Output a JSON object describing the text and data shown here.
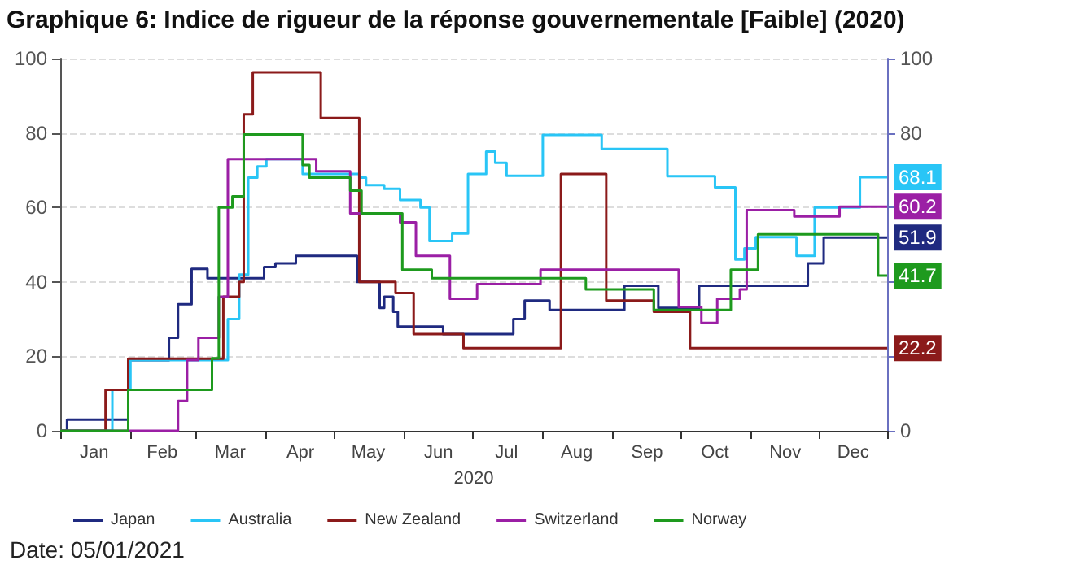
{
  "chart_data": {
    "type": "step",
    "title": "Graphique 6: Indice de rigueur de la réponse gouvernementale [Faible] (2020)",
    "xlabel": "2020",
    "annotations": [
      "Date: 05/01/2021"
    ],
    "xlim": [
      "2020-01-01",
      "2020-12-31"
    ],
    "xticks": [
      {
        "value": "2020-01-01",
        "label": null
      },
      {
        "value": "2020-01-16",
        "label": "Jan"
      },
      {
        "value": "2020-02-01",
        "label": null
      },
      {
        "value": "2020-02-15",
        "label": "Feb"
      },
      {
        "value": "2020-03-01",
        "label": null
      },
      {
        "value": "2020-03-16",
        "label": "Mar"
      },
      {
        "value": "2020-04-01",
        "label": null
      },
      {
        "value": "2020-04-16",
        "label": "Apr"
      },
      {
        "value": "2020-05-01",
        "label": null
      },
      {
        "value": "2020-05-16",
        "label": "May"
      },
      {
        "value": "2020-06-01",
        "label": null
      },
      {
        "value": "2020-06-16",
        "label": "Jun"
      },
      {
        "value": "2020-07-01",
        "label": null
      },
      {
        "value": "2020-07-16",
        "label": "Jul"
      },
      {
        "value": "2020-08-01",
        "label": null
      },
      {
        "value": "2020-08-16",
        "label": "Aug"
      },
      {
        "value": "2020-09-01",
        "label": null
      },
      {
        "value": "2020-09-16",
        "label": "Sep"
      },
      {
        "value": "2020-10-01",
        "label": null
      },
      {
        "value": "2020-10-16",
        "label": "Oct"
      },
      {
        "value": "2020-11-01",
        "label": null
      },
      {
        "value": "2020-11-16",
        "label": "Nov"
      },
      {
        "value": "2020-12-01",
        "label": null
      },
      {
        "value": "2020-12-16",
        "label": "Dec"
      },
      {
        "value": "2020-12-31",
        "label": null
      }
    ],
    "ylim": [
      0,
      100
    ],
    "yticks": [
      0,
      20,
      40,
      60,
      80,
      100
    ],
    "y2lim": [
      0,
      100
    ],
    "y2ticks": [
      0,
      {
        "value": 20,
        "label": null
      },
      {
        "value": 40,
        "label": null
      },
      {
        "value": 60,
        "label": null
      },
      80,
      100
    ],
    "grid": "y",
    "legend": "bottom",
    "marker": "none",
    "series": [
      {
        "name": "Japan",
        "color": "#1f2a80",
        "x": [
          "2020-01-01",
          "2020-01-04",
          "2020-01-31",
          "2020-02-18",
          "2020-02-22",
          "2020-02-28",
          "2020-03-06",
          "2020-03-31",
          "2020-04-05",
          "2020-04-14",
          "2020-05-11",
          "2020-05-21",
          "2020-05-23",
          "2020-05-27",
          "2020-05-29",
          "2020-06-18",
          "2020-07-19",
          "2020-07-24",
          "2020-08-04",
          "2020-09-06",
          "2020-09-21",
          "2020-10-09",
          "2020-11-26",
          "2020-12-03",
          "2020-12-31"
        ],
        "values": [
          0,
          3,
          19,
          25,
          34,
          43.5,
          41,
          44,
          45,
          47,
          40,
          33,
          36,
          32,
          28,
          26,
          30,
          35,
          32.5,
          39,
          33,
          39,
          45,
          51.9,
          51.9
        ],
        "value_labels": [
          null,
          null,
          null,
          null,
          null,
          null,
          null,
          null,
          null,
          null,
          null,
          null,
          null,
          null,
          null,
          null,
          null,
          null,
          null,
          null,
          null,
          null,
          null,
          null,
          "51.9"
        ]
      },
      {
        "name": "Australia",
        "color": "#29c5f6",
        "x": [
          "2020-01-01",
          "2020-01-24",
          "2020-02-01",
          "2020-03-15",
          "2020-03-20",
          "2020-03-24",
          "2020-03-28",
          "2020-04-01",
          "2020-04-17",
          "2020-05-12",
          "2020-05-15",
          "2020-05-23",
          "2020-05-30",
          "2020-06-08",
          "2020-06-12",
          "2020-06-22",
          "2020-06-29",
          "2020-07-07",
          "2020-07-11",
          "2020-07-16",
          "2020-08-01",
          "2020-08-27",
          "2020-09-25",
          "2020-10-16",
          "2020-10-25",
          "2020-10-29",
          "2020-11-03",
          "2020-11-21",
          "2020-11-29",
          "2020-12-19",
          "2020-12-31"
        ],
        "values": [
          0,
          11,
          19,
          30,
          42,
          68,
          71,
          73,
          69,
          68,
          66,
          65,
          62,
          60,
          51,
          53,
          69,
          75,
          72,
          68.5,
          79.5,
          75.7,
          68.4,
          65.4,
          46,
          49,
          52,
          47,
          60,
          68.1,
          68.1
        ],
        "value_labels": [
          null,
          null,
          null,
          null,
          null,
          null,
          null,
          null,
          null,
          null,
          null,
          null,
          null,
          null,
          null,
          null,
          null,
          null,
          null,
          null,
          null,
          null,
          null,
          null,
          null,
          null,
          null,
          null,
          null,
          null,
          "68.1"
        ]
      },
      {
        "name": "New Zealand",
        "color": "#8b1a1a",
        "x": [
          "2020-01-01",
          "2020-01-21",
          "2020-01-31",
          "2020-03-13",
          "2020-03-20",
          "2020-03-22",
          "2020-03-26",
          "2020-04-25",
          "2020-05-12",
          "2020-05-28",
          "2020-06-05",
          "2020-06-27",
          "2020-08-09",
          "2020-08-29",
          "2020-09-19",
          "2020-10-05",
          "2020-12-31"
        ],
        "values": [
          0,
          11,
          19.4,
          36,
          40,
          85,
          96.3,
          84,
          40,
          37,
          26,
          22.2,
          69,
          35,
          32,
          22.2,
          22.2
        ],
        "value_labels": [
          null,
          null,
          null,
          null,
          null,
          null,
          null,
          null,
          null,
          null,
          null,
          null,
          null,
          null,
          null,
          null,
          "22.2"
        ]
      },
      {
        "name": "Switzerland",
        "color": "#9b1fa5",
        "x": [
          "2020-01-01",
          "2020-02-22",
          "2020-02-26",
          "2020-03-02",
          "2020-03-11",
          "2020-03-15",
          "2020-04-23",
          "2020-05-08",
          "2020-05-30",
          "2020-06-06",
          "2020-06-21",
          "2020-07-03",
          "2020-07-31",
          "2020-09-30",
          "2020-10-10",
          "2020-10-17",
          "2020-10-27",
          "2020-10-30",
          "2020-11-20",
          "2020-12-10",
          "2020-12-31"
        ],
        "values": [
          0,
          8,
          19,
          25,
          36,
          73,
          69.7,
          58.4,
          56,
          47,
          35.5,
          39.4,
          43.3,
          33.3,
          29,
          35.5,
          38,
          59.3,
          57.6,
          60.2,
          60.2
        ],
        "value_labels": [
          null,
          null,
          null,
          null,
          null,
          null,
          null,
          null,
          null,
          null,
          null,
          null,
          null,
          null,
          null,
          null,
          null,
          null,
          null,
          null,
          "60.2"
        ]
      },
      {
        "name": "Norway",
        "color": "#1e9a1e",
        "x": [
          "2020-01-01",
          "2020-01-31",
          "2020-03-08",
          "2020-03-11",
          "2020-03-17",
          "2020-03-22",
          "2020-04-17",
          "2020-04-20",
          "2020-05-08",
          "2020-05-13",
          "2020-05-31",
          "2020-06-13",
          "2020-08-20",
          "2020-09-19",
          "2020-10-23",
          "2020-11-04",
          "2020-12-27",
          "2020-12-31"
        ],
        "values": [
          0,
          11,
          19.5,
          60,
          63,
          79.6,
          71.4,
          68,
          64.5,
          58.4,
          43.3,
          41,
          38,
          32.5,
          43.3,
          52.8,
          41.7,
          41.7
        ],
        "value_labels": [
          null,
          null,
          null,
          null,
          null,
          null,
          null,
          null,
          null,
          null,
          null,
          null,
          null,
          null,
          null,
          null,
          null,
          "41.7"
        ]
      }
    ]
  }
}
